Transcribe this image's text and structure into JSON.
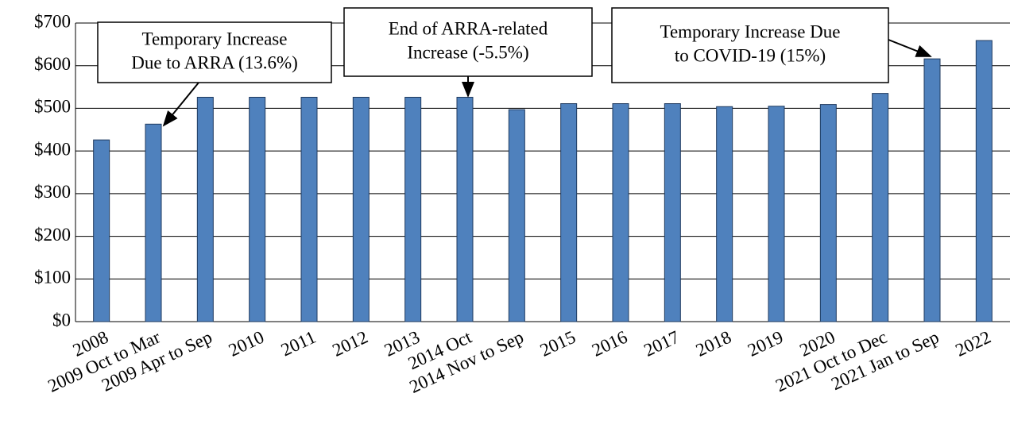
{
  "chart_data": {
    "type": "bar",
    "categories": [
      "2008",
      "2009 Oct to Mar",
      "2009 Apr to Sep",
      "2010",
      "2011",
      "2012",
      "2013",
      "2014 Oct",
      "2014 Nov to Sep",
      "2015",
      "2016",
      "2017",
      "2018",
      "2019",
      "2020",
      "2021 Oct to Dec",
      "2021 Jan to Sep",
      "2022"
    ],
    "values": [
      426,
      463,
      526,
      526,
      526,
      526,
      526,
      526,
      497,
      511,
      511,
      511,
      504,
      505,
      509,
      535,
      616,
      659
    ],
    "color": "#4f81bd",
    "ylim": [
      0,
      700
    ],
    "yticks": [
      {
        "value": 0,
        "label": "$0"
      },
      {
        "value": 100,
        "label": "$100"
      },
      {
        "value": 200,
        "label": "$200"
      },
      {
        "value": 300,
        "label": "$300"
      },
      {
        "value": 400,
        "label": "$400"
      },
      {
        "value": 500,
        "label": "$500"
      },
      {
        "value": 600,
        "label": "$600"
      },
      {
        "value": 700,
        "label": "$700"
      }
    ],
    "grid": true,
    "annotations": [
      [
        "Temporary  Increase",
        "Due to ARRA (13.6%)"
      ],
      [
        "End of ARRA-related",
        "Increase (-5.5%)"
      ],
      [
        "Temporary Increase Due",
        "to COVID-19 (15%)"
      ]
    ]
  }
}
